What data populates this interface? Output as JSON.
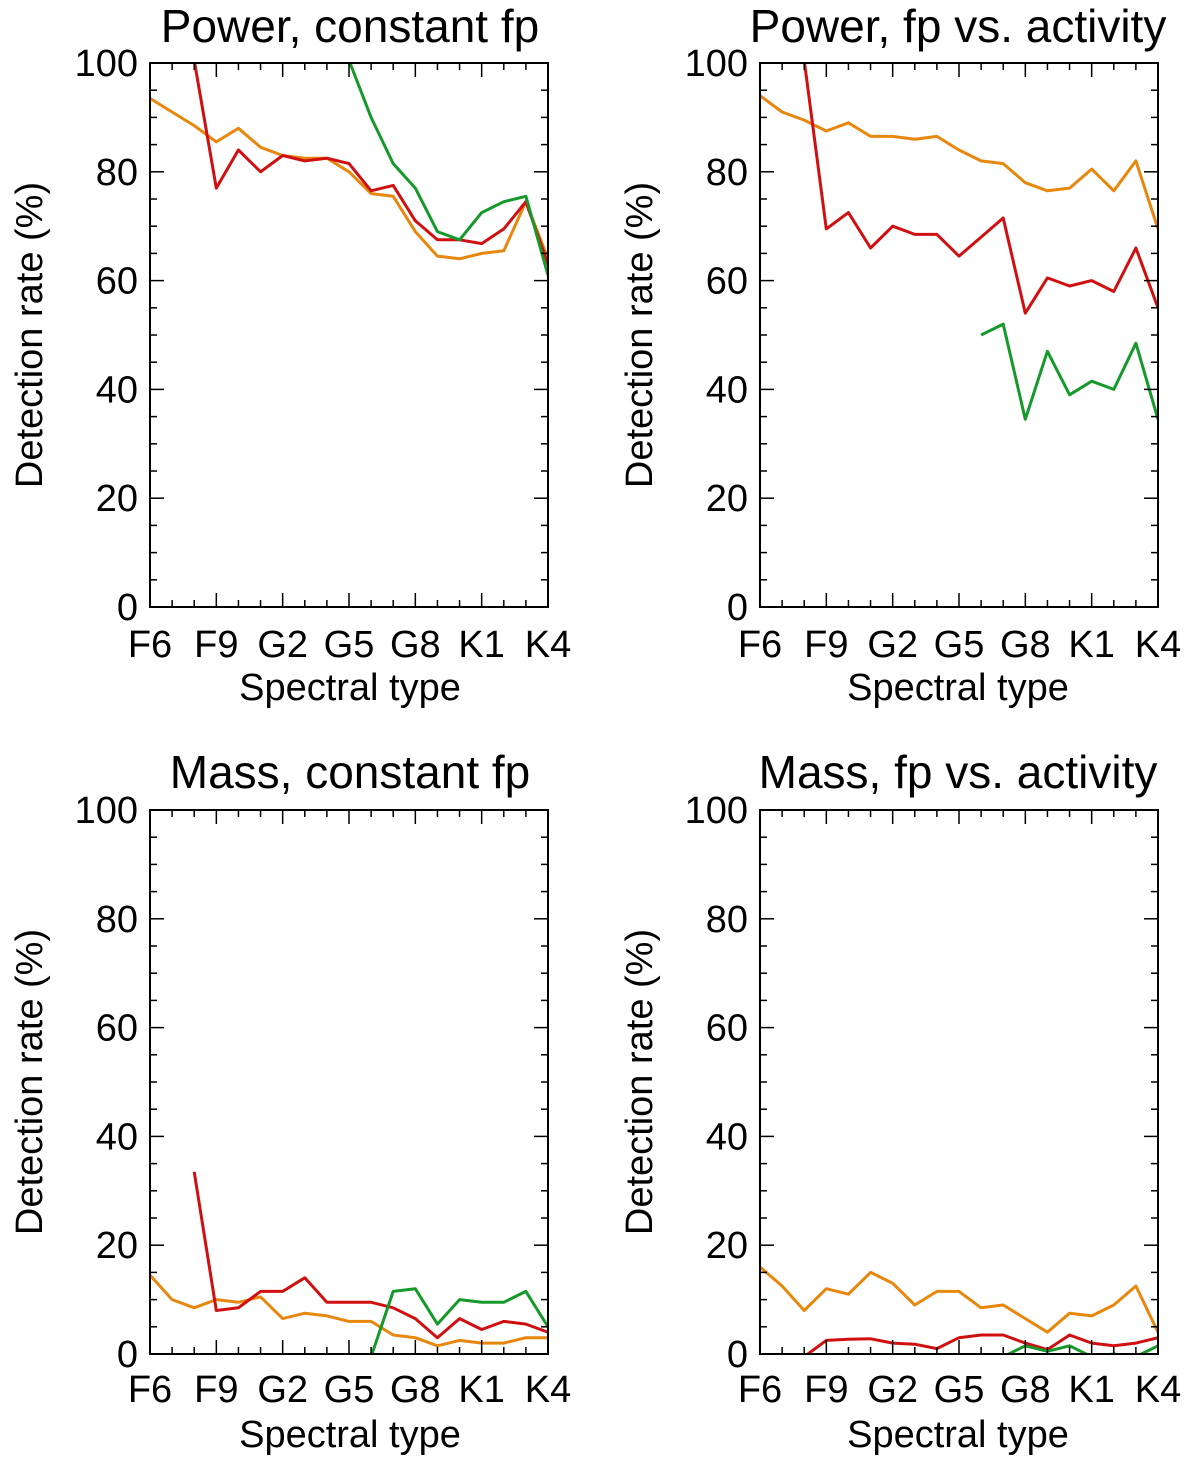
{
  "colors": {
    "orange": "#e8870e",
    "red": "#d01010",
    "green": "#159a2a"
  },
  "chart_data": [
    {
      "type": "line",
      "title": "Power, constant fp",
      "xlabel": "Spectral type",
      "ylabel": "Detection rate (%)",
      "ylim": [
        0,
        100
      ],
      "xlim": [
        0,
        18
      ],
      "x_tick_labels": [
        "F6",
        "F9",
        "G2",
        "G5",
        "G8",
        "K1",
        "K4"
      ],
      "y_tick_labels": [
        "0",
        "20",
        "40",
        "60",
        "80",
        "100"
      ],
      "x_positions": [
        0,
        1,
        2,
        3,
        4,
        5,
        6,
        7,
        8,
        9,
        10,
        11,
        12,
        13,
        14,
        15,
        16,
        17,
        18
      ],
      "series": [
        {
          "name": "orange",
          "color": "orange",
          "values": [
            93.5,
            91,
            88.5,
            85.5,
            88,
            84.5,
            83,
            82.5,
            82.5,
            80,
            76,
            75.5,
            69,
            64.5,
            64,
            65,
            65.5,
            74.5,
            64
          ]
        },
        {
          "name": "red",
          "color": "red",
          "values": [
            null,
            null,
            100.5,
            77,
            84,
            80,
            83,
            82,
            82.5,
            81.5,
            76.5,
            77.5,
            71,
            67.5,
            67.5,
            66.8,
            69.5,
            74.5,
            63
          ]
        },
        {
          "name": "green",
          "color": "green",
          "values": [
            null,
            null,
            null,
            null,
            null,
            null,
            null,
            null,
            null,
            100.5,
            90,
            81.5,
            77,
            69,
            67.5,
            72.5,
            74.5,
            75.5,
            61
          ]
        }
      ]
    },
    {
      "type": "line",
      "title": "Power, fp vs. activity",
      "xlabel": "Spectral type",
      "ylabel": "Detection rate (%)",
      "ylim": [
        0,
        100
      ],
      "xlim": [
        0,
        18
      ],
      "x_tick_labels": [
        "F6",
        "F9",
        "G2",
        "G5",
        "G8",
        "K1",
        "K4"
      ],
      "y_tick_labels": [
        "0",
        "20",
        "40",
        "60",
        "80",
        "100"
      ],
      "x_positions": [
        0,
        1,
        2,
        3,
        4,
        5,
        6,
        7,
        8,
        9,
        10,
        11,
        12,
        13,
        14,
        15,
        16,
        17,
        18
      ],
      "series": [
        {
          "name": "orange",
          "color": "orange",
          "values": [
            94,
            91,
            89.5,
            87.5,
            89,
            86.5,
            86.5,
            86,
            86.5,
            84,
            82,
            81.5,
            78,
            76.5,
            77,
            80.5,
            76.5,
            82,
            69.5
          ]
        },
        {
          "name": "red",
          "color": "red",
          "values": [
            null,
            null,
            100.5,
            69.5,
            72.5,
            66,
            70,
            68.5,
            68.5,
            64.5,
            68,
            71.5,
            54,
            60.5,
            59,
            60,
            58,
            66,
            55
          ]
        },
        {
          "name": "green",
          "color": "green",
          "values": [
            null,
            null,
            null,
            null,
            null,
            null,
            null,
            null,
            null,
            null,
            50,
            52,
            34.5,
            47,
            39,
            41.5,
            40,
            48.5,
            34.5
          ]
        }
      ]
    },
    {
      "type": "line",
      "title": "Mass, constant fp",
      "xlabel": "Spectral type",
      "ylabel": "Detection rate (%)",
      "ylim": [
        0,
        100
      ],
      "xlim": [
        0,
        18
      ],
      "x_tick_labels": [
        "F6",
        "F9",
        "G2",
        "G5",
        "G8",
        "K1",
        "K4"
      ],
      "y_tick_labels": [
        "0",
        "20",
        "40",
        "60",
        "80",
        "100"
      ],
      "x_positions": [
        0,
        1,
        2,
        3,
        4,
        5,
        6,
        7,
        8,
        9,
        10,
        11,
        12,
        13,
        14,
        15,
        16,
        17,
        18
      ],
      "series": [
        {
          "name": "orange",
          "color": "orange",
          "values": [
            14.5,
            10,
            8.5,
            10,
            9.5,
            10.5,
            6.5,
            7.5,
            7,
            6,
            6,
            3.5,
            3,
            1.5,
            2.5,
            2,
            2,
            3,
            3
          ]
        },
        {
          "name": "red",
          "color": "red",
          "values": [
            null,
            null,
            33.5,
            8,
            8.5,
            11.5,
            11.5,
            14,
            9.5,
            9.5,
            9.5,
            8.5,
            6.5,
            3,
            6.5,
            4.5,
            6,
            5.5,
            4
          ]
        },
        {
          "name": "green",
          "color": "green",
          "values": [
            null,
            null,
            null,
            null,
            null,
            null,
            null,
            null,
            null,
            null,
            -0.5,
            11.5,
            12,
            5.5,
            10,
            9.5,
            9.5,
            11.5,
            5
          ]
        }
      ]
    },
    {
      "type": "line",
      "title": "Mass, fp vs. activity",
      "xlabel": "Spectral type",
      "ylabel": "Detection rate (%)",
      "ylim": [
        0,
        100
      ],
      "xlim": [
        0,
        18
      ],
      "x_tick_labels": [
        "F6",
        "F9",
        "G2",
        "G5",
        "G8",
        "K1",
        "K4"
      ],
      "y_tick_labels": [
        "0",
        "20",
        "40",
        "60",
        "80",
        "100"
      ],
      "x_positions": [
        0,
        1,
        2,
        3,
        4,
        5,
        6,
        7,
        8,
        9,
        10,
        11,
        12,
        13,
        14,
        15,
        16,
        17,
        18
      ],
      "series": [
        {
          "name": "orange",
          "color": "orange",
          "values": [
            16,
            12.5,
            8,
            12,
            11,
            15,
            13,
            9,
            11.5,
            11.5,
            8.5,
            9,
            6.5,
            4,
            7.5,
            7,
            9,
            12.5,
            4
          ]
        },
        {
          "name": "red",
          "color": "red",
          "values": [
            null,
            null,
            -0.5,
            2.5,
            2.7,
            2.8,
            2,
            1.8,
            1,
            3,
            3.5,
            3.5,
            2,
            0.8,
            3.5,
            2,
            1.5,
            2,
            3
          ]
        },
        {
          "name": "green",
          "color": "green",
          "values": [
            null,
            null,
            null,
            null,
            null,
            null,
            null,
            null,
            null,
            null,
            -0.5,
            -0.5,
            1.5,
            0.5,
            1.5,
            -0.5,
            0,
            -0.5,
            1.5
          ]
        }
      ]
    }
  ]
}
